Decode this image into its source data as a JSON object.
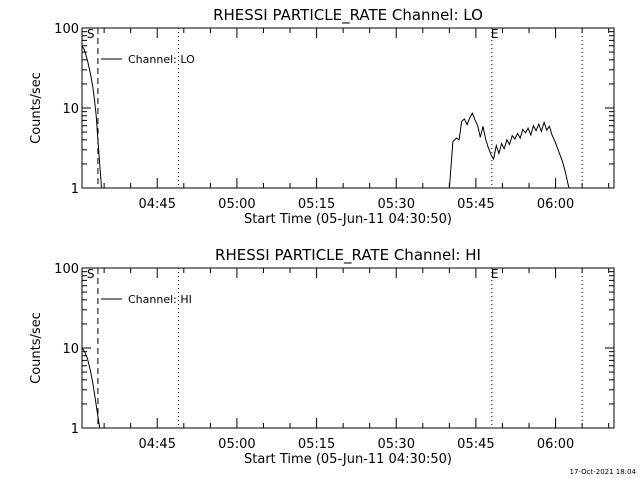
{
  "footer_date": "17-Oct-2021 18:04",
  "chart_data": [
    {
      "type": "line",
      "title": "RHESSI PARTICLE_RATE Channel: LO",
      "xlabel": "Start Time (05-Jun-11 04:30:50)",
      "ylabel": "Counts/sec",
      "legend": {
        "label": "Channel: LO",
        "placement": "top-left"
      },
      "y_scale": "log",
      "ylim": [
        1,
        100
      ],
      "y_ticks": [
        "1",
        "10",
        "100"
      ],
      "xlim": [
        "04:30:50",
        "06:11:00"
      ],
      "x_ticks": [
        "04:45",
        "05:00",
        "05:15",
        "05:30",
        "05:45",
        "06:00"
      ],
      "markers": [
        {
          "label": "S",
          "time": "04:33:50",
          "style": "dashed"
        },
        {
          "label": "",
          "time": "04:49:00",
          "style": "dotted"
        },
        {
          "label": "E",
          "time": "05:48:00",
          "style": "dotted"
        },
        {
          "label": "",
          "time": "06:05:00",
          "style": "dotted"
        }
      ],
      "series": [
        {
          "name": "Channel: LO",
          "segments": [
            [
              [
                "04:30:50",
                60
              ],
              [
                "04:31:10",
                55
              ],
              [
                "04:31:30",
                48
              ],
              [
                "04:31:50",
                40
              ],
              [
                "04:32:10",
                32
              ],
              [
                "04:32:30",
                25
              ],
              [
                "04:32:50",
                19
              ],
              [
                "04:33:10",
                13
              ],
              [
                "04:33:30",
                8
              ],
              [
                "04:33:50",
                4
              ],
              [
                "04:34:10",
                2
              ],
              [
                "04:34:30",
                1
              ]
            ],
            [
              [
                "05:40:00",
                1
              ],
              [
                "05:40:40",
                3.8
              ],
              [
                "05:41:20",
                4.2
              ],
              [
                "05:41:50",
                4.0
              ],
              [
                "05:42:20",
                6.8
              ],
              [
                "05:42:50",
                7.3
              ],
              [
                "05:43:20",
                6.2
              ],
              [
                "05:43:50",
                7.5
              ],
              [
                "05:44:20",
                8.6
              ],
              [
                "05:44:50",
                7.1
              ],
              [
                "05:45:20",
                6.0
              ],
              [
                "05:45:50",
                4.3
              ],
              [
                "05:46:20",
                5.9
              ],
              [
                "05:46:50",
                4.1
              ],
              [
                "05:47:20",
                3.2
              ],
              [
                "05:47:50",
                2.6
              ],
              [
                "05:48:20",
                2.3
              ],
              [
                "05:48:50",
                3.4
              ],
              [
                "05:49:20",
                2.7
              ],
              [
                "05:49:50",
                3.6
              ],
              [
                "05:50:20",
                3.1
              ],
              [
                "05:50:50",
                4.0
              ],
              [
                "05:51:20",
                3.5
              ],
              [
                "05:51:50",
                4.5
              ],
              [
                "05:52:20",
                4.1
              ],
              [
                "05:52:50",
                4.8
              ],
              [
                "05:53:20",
                4.2
              ],
              [
                "05:53:50",
                5.4
              ],
              [
                "05:54:20",
                4.9
              ],
              [
                "05:54:50",
                5.6
              ],
              [
                "05:55:20",
                4.6
              ],
              [
                "05:55:50",
                6.0
              ],
              [
                "05:56:20",
                5.2
              ],
              [
                "05:56:50",
                6.3
              ],
              [
                "05:57:20",
                5.1
              ],
              [
                "05:57:50",
                6.6
              ],
              [
                "05:58:20",
                5.3
              ],
              [
                "05:58:50",
                5.9
              ],
              [
                "05:59:20",
                4.6
              ],
              [
                "05:59:50",
                3.9
              ],
              [
                "06:00:20",
                3.2
              ],
              [
                "06:00:50",
                2.6
              ],
              [
                "06:01:20",
                2.1
              ],
              [
                "06:01:50",
                1.6
              ],
              [
                "06:02:30",
                1
              ]
            ]
          ]
        }
      ]
    },
    {
      "type": "line",
      "title": "RHESSI PARTICLE_RATE Channel: HI",
      "xlabel": "Start Time (05-Jun-11 04:30:50)",
      "ylabel": "Counts/sec",
      "legend": {
        "label": "Channel: HI",
        "placement": "top-left"
      },
      "y_scale": "log",
      "ylim": [
        1,
        100
      ],
      "y_ticks": [
        "1",
        "10",
        "100"
      ],
      "xlim": [
        "04:30:50",
        "06:11:00"
      ],
      "x_ticks": [
        "04:45",
        "05:00",
        "05:15",
        "05:30",
        "05:45",
        "06:00"
      ],
      "markers": [
        {
          "label": "S",
          "time": "04:33:50",
          "style": "dashed"
        },
        {
          "label": "",
          "time": "04:49:00",
          "style": "dotted"
        },
        {
          "label": "E",
          "time": "05:48:00",
          "style": "dotted"
        },
        {
          "label": "",
          "time": "06:05:00",
          "style": "dotted"
        }
      ],
      "series": [
        {
          "name": "Channel: HI",
          "segments": [
            [
              [
                "04:30:50",
                10
              ],
              [
                "04:31:20",
                9
              ],
              [
                "04:31:50",
                7.5
              ],
              [
                "04:32:20",
                5.5
              ],
              [
                "04:32:50",
                3.8
              ],
              [
                "04:33:20",
                2.3
              ],
              [
                "04:33:50",
                1.4
              ],
              [
                "04:34:10",
                1
              ]
            ]
          ]
        }
      ]
    }
  ]
}
